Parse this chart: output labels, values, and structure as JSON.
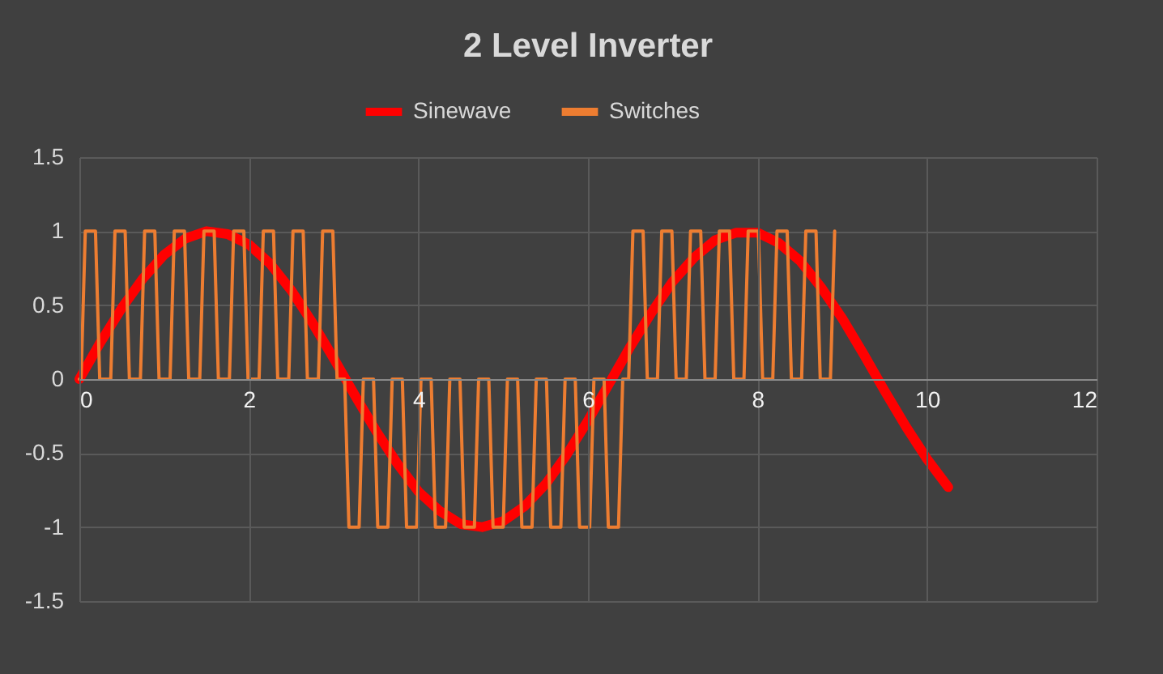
{
  "chart_data": {
    "type": "line",
    "title": "2 Level Inverter",
    "legend": "top",
    "grid": true,
    "line_style": "solid",
    "marker": "none",
    "xlim": [
      0,
      12
    ],
    "xticks": [
      0,
      2,
      4,
      6,
      8,
      10,
      12
    ],
    "ylim": [
      -1.5,
      1.5
    ],
    "yticks": [
      -1.5,
      -1,
      -0.5,
      0,
      0.5,
      1,
      1.5
    ],
    "series": [
      {
        "name": "Sinewave",
        "color": "#ff0000",
        "x": [
          0,
          0.25,
          0.5,
          0.75,
          1,
          1.25,
          1.5,
          1.75,
          2,
          2.25,
          2.5,
          2.75,
          3,
          3.25,
          3.5,
          3.75,
          4,
          4.25,
          4.5,
          4.75,
          5,
          5.25,
          5.5,
          5.75,
          6,
          6.25,
          6.5,
          6.75,
          7,
          7.25,
          7.5,
          7.75,
          8,
          8.25,
          8.5,
          8.75,
          9,
          9.25,
          9.5,
          9.75,
          10,
          10.25
        ],
        "values": [
          0,
          0.25,
          0.48,
          0.68,
          0.84,
          0.95,
          1.0,
          0.98,
          0.91,
          0.78,
          0.6,
          0.38,
          0.14,
          -0.11,
          -0.35,
          -0.57,
          -0.76,
          -0.89,
          -0.98,
          -1.0,
          -0.96,
          -0.86,
          -0.71,
          -0.51,
          -0.28,
          -0.03,
          0.22,
          0.45,
          0.66,
          0.82,
          0.94,
          0.99,
          0.99,
          0.92,
          0.8,
          0.62,
          0.41,
          0.17,
          -0.08,
          -0.32,
          -0.54,
          -0.73
        ]
      },
      {
        "name": "Switches",
        "color": "#ed7d31",
        "x": [
          0,
          0.02,
          0.07,
          0.19,
          0.24,
          0.37,
          0.42,
          0.54,
          0.59,
          0.72,
          0.77,
          0.89,
          0.94,
          1.07,
          1.12,
          1.24,
          1.29,
          1.42,
          1.47,
          1.59,
          1.64,
          1.77,
          1.82,
          1.94,
          1.99,
          2.12,
          2.17,
          2.29,
          2.34,
          2.47,
          2.52,
          2.64,
          2.69,
          2.82,
          2.87,
          2.99,
          3.04,
          3.13,
          3.18,
          3.3,
          3.35,
          3.47,
          3.52,
          3.64,
          3.69,
          3.81,
          3.86,
          3.98,
          4.03,
          4.15,
          4.2,
          4.32,
          4.37,
          4.49,
          4.54,
          4.66,
          4.71,
          4.83,
          4.88,
          5.0,
          5.05,
          5.17,
          5.22,
          5.34,
          5.39,
          5.51,
          5.56,
          5.68,
          5.73,
          5.85,
          5.9,
          6.02,
          6.07,
          6.19,
          6.24,
          6.36,
          6.41,
          6.48,
          6.53,
          6.65,
          6.7,
          6.82,
          6.87,
          6.99,
          7.04,
          7.16,
          7.21,
          7.33,
          7.38,
          7.5,
          7.55,
          7.67,
          7.72,
          7.84,
          7.89,
          8.01,
          8.06,
          8.18,
          8.23,
          8.35,
          8.4,
          8.52,
          8.57,
          8.69,
          8.74,
          8.86,
          8.91
        ],
        "values": [
          0,
          0,
          1,
          1,
          0,
          0,
          1,
          1,
          0,
          0,
          1,
          1,
          0,
          0,
          1,
          1,
          0,
          0,
          1,
          1,
          0,
          0,
          1,
          1,
          0,
          0,
          1,
          1,
          0,
          0,
          1,
          1,
          0,
          0,
          1,
          1,
          0,
          0,
          -1,
          -1,
          0,
          0,
          -1,
          -1,
          0,
          0,
          -1,
          -1,
          0,
          0,
          -1,
          -1,
          0,
          0,
          -1,
          -1,
          0,
          0,
          -1,
          -1,
          0,
          0,
          -1,
          -1,
          0,
          0,
          -1,
          -1,
          0,
          0,
          -1,
          -1,
          0,
          0,
          -1,
          -1,
          0,
          0,
          1,
          1,
          0,
          0,
          1,
          1,
          0,
          0,
          1,
          1,
          0,
          0,
          1,
          1,
          0,
          0,
          1,
          1,
          0,
          0,
          1,
          1,
          0,
          0,
          1,
          1,
          0,
          0,
          1
        ]
      }
    ]
  }
}
